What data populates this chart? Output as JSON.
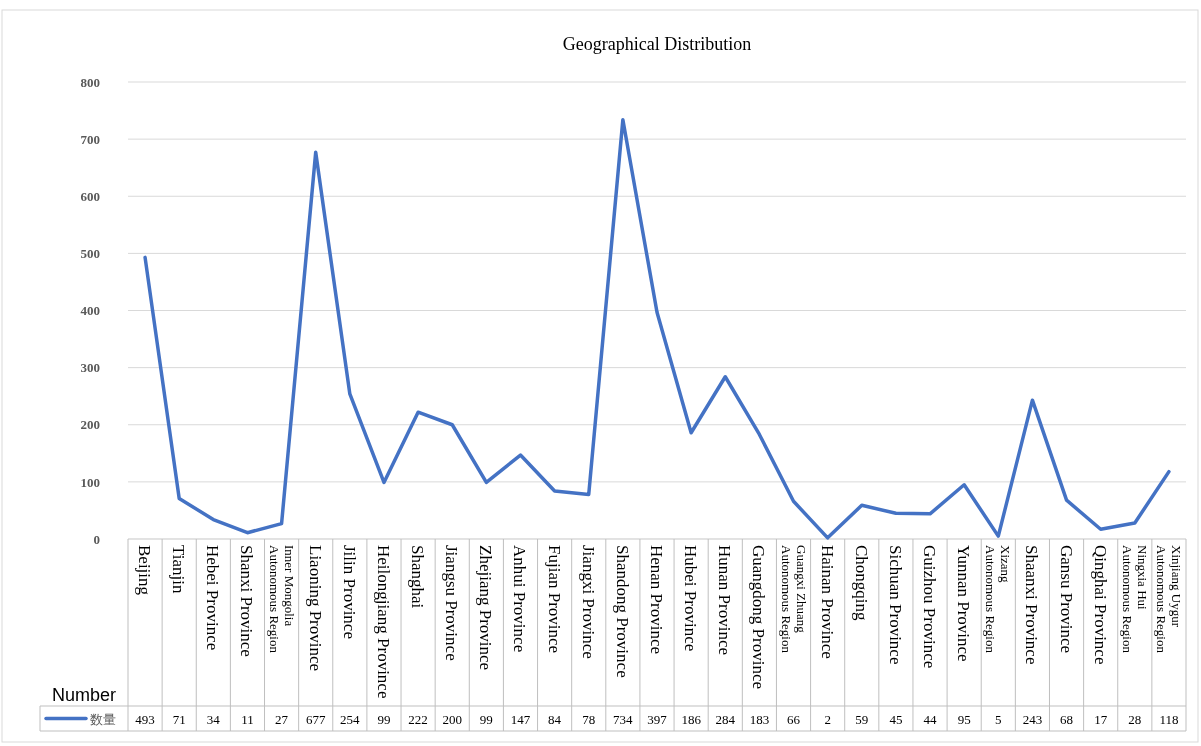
{
  "chart_data": {
    "type": "line",
    "title": "Geographical Distribution",
    "ylabel": "Number",
    "categories": [
      "Beijing",
      "Tianjin",
      "Hebei Province",
      "Shanxi Province",
      "Inner Mongolia Autonomous Region",
      "Liaoning Province",
      "Jilin Province",
      "Heilongjiang Province",
      "Shanghai",
      "Jiangsu Province",
      "Zhejiang Province",
      "Anhui Province",
      "Fujian Province",
      "Jiangxi Province",
      "Shandong Province",
      "Henan Province",
      "Hubei Province",
      "Hunan Province",
      "Guangdong Province",
      "Guangxi Zhuang Autonomous Region",
      "Hainan Province",
      "Chongqing",
      "Sichuan Province",
      "Guizhou Province",
      "Yunnan Province",
      "Xizang Autonomous Region",
      "Shaanxi Province",
      "Gansu Province",
      "Qinghai Province",
      "Ningxia Hui Autonomous Region",
      "Xinjiang Uygur Autonomous Region"
    ],
    "series": [
      {
        "name": "数量",
        "color": "#4472c4",
        "values": [
          493,
          71,
          34,
          11,
          27,
          677,
          254,
          99,
          222,
          200,
          99,
          147,
          84,
          78,
          734,
          397,
          186,
          284,
          183,
          66,
          2,
          59,
          45,
          44,
          95,
          5,
          243,
          68,
          17,
          28,
          118
        ]
      }
    ],
    "ylim": [
      0,
      800
    ],
    "yticks": [
      0,
      100,
      200,
      300,
      400,
      500,
      600,
      700,
      800
    ],
    "grid": "y",
    "legend": "bottom",
    "data_labels": true,
    "marker": "none",
    "line_style": "solid"
  }
}
